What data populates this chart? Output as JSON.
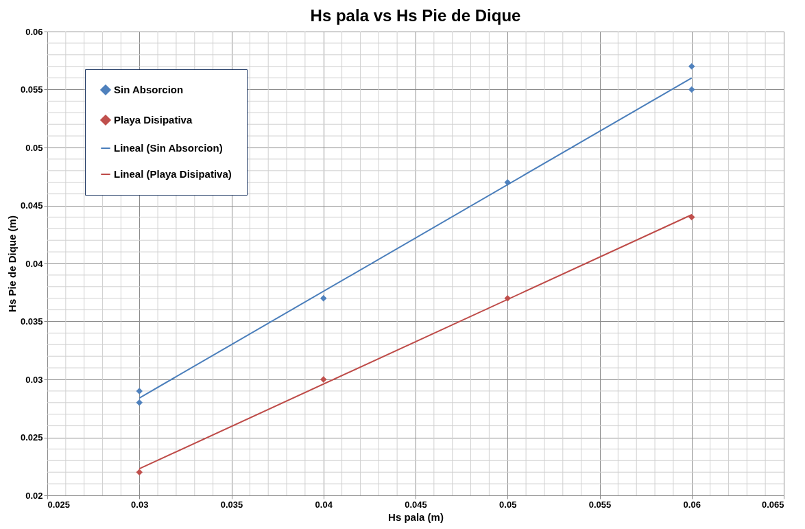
{
  "chart_data": {
    "type": "scatter",
    "title": "Hs pala vs Hs Pie de Dique",
    "xlabel": "Hs pala (m)",
    "ylabel": "Hs Pie de Dique (m)",
    "xlim": [
      0.025,
      0.065
    ],
    "xticks": [
      0.025,
      0.03,
      0.035,
      0.04,
      0.045,
      0.05,
      0.055,
      0.06,
      0.065
    ],
    "ylim": [
      0.02,
      0.06
    ],
    "yticks": [
      0.02,
      0.025,
      0.03,
      0.035,
      0.04,
      0.045,
      0.05,
      0.055,
      0.06
    ],
    "grid": true,
    "legend": "top left",
    "series": [
      {
        "name": "Sin Absorcion",
        "marker": "diamond",
        "color": "#4f81bd",
        "x": [
          0.03,
          0.03,
          0.04,
          0.05,
          0.06,
          0.06
        ],
        "values": [
          0.029,
          0.028,
          0.037,
          0.047,
          0.057,
          0.055
        ]
      },
      {
        "name": "Playa Disipativa",
        "marker": "diamond",
        "color": "#c0504d",
        "x": [
          0.03,
          0.04,
          0.05,
          0.06
        ],
        "values": [
          0.022,
          0.03,
          0.037,
          0.044
        ]
      },
      {
        "name": "Lineal (Sin Absorcion)",
        "type": "line",
        "marker": "none",
        "color": "#4a7ebb",
        "x": [
          0.03,
          0.06
        ],
        "values": [
          0.0284,
          0.056
        ]
      },
      {
        "name": "Lineal (Playa Disipativa)",
        "type": "line",
        "marker": "none",
        "color": "#be4b48",
        "x": [
          0.03,
          0.06
        ],
        "values": [
          0.0223,
          0.0442
        ]
      }
    ]
  }
}
